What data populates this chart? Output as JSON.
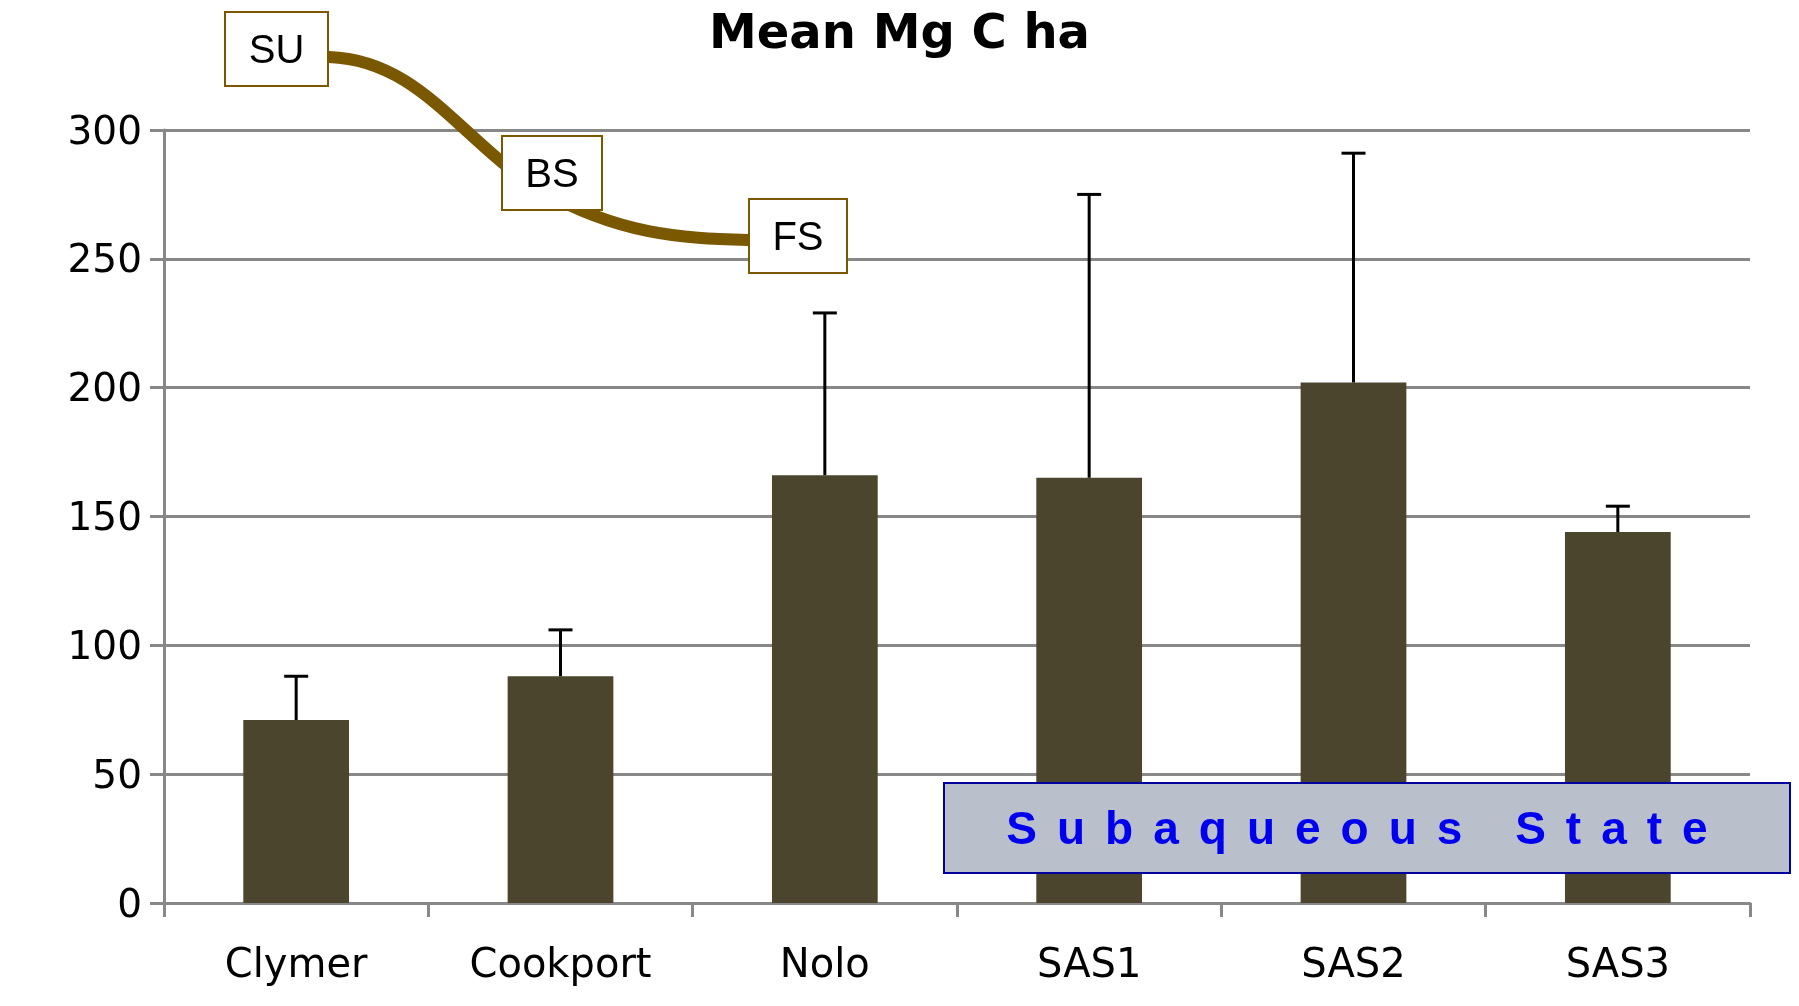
{
  "chart_data": {
    "type": "bar",
    "title": "Mean Mg C ha",
    "categories": [
      "Clymer",
      "Cookport",
      "Nolo",
      "SAS1",
      "SAS2",
      "SAS3"
    ],
    "values": [
      71,
      88,
      166,
      165,
      202,
      144
    ],
    "errors": [
      [
        71,
        88
      ],
      [
        88,
        106
      ],
      [
        166,
        229
      ],
      [
        165,
        275
      ],
      [
        202,
        291
      ],
      [
        144,
        154
      ]
    ],
    "color": "#4a452c",
    "ylim": [
      0,
      300
    ],
    "yticks": [
      0,
      50,
      100,
      150,
      200,
      250,
      300
    ],
    "grid": "y",
    "annotations": [
      "SU",
      "BS",
      "FS",
      "Subaqueous State"
    ]
  }
}
